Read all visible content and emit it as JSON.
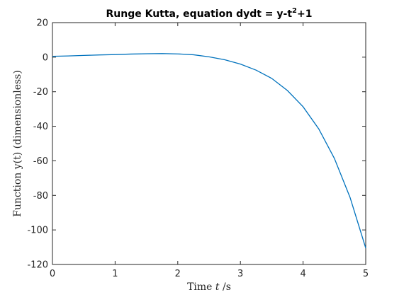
{
  "chart_data": {
    "type": "line",
    "title_main": "Runge Kutta, equation dydt = y-t",
    "title_sup": "2",
    "title_tail": "+1",
    "xlabel_prefix": "Time ",
    "xlabel_var": "t",
    "xlabel_suffix": " /s",
    "ylabel": "Function y(t) (dimensionless)",
    "xlim": [
      0,
      5
    ],
    "ylim": [
      -120,
      20
    ],
    "xticks": [
      0,
      1,
      2,
      3,
      4,
      5
    ],
    "xtick_labels": [
      "0",
      "1",
      "2",
      "3",
      "4",
      "5"
    ],
    "yticks": [
      20,
      0,
      -20,
      -40,
      -60,
      -80,
      -100,
      -120
    ],
    "ytick_labels": [
      "20",
      "0",
      "-20",
      "-40",
      "-60",
      "-80",
      "-100",
      "-120"
    ],
    "grid": false,
    "line_color": "#0072bd",
    "series": [
      {
        "x": [
          0,
          0.25,
          0.5,
          0.75,
          1.0,
          1.25,
          1.5,
          1.75,
          2.0,
          2.25,
          2.5,
          2.75,
          3.0,
          3.25,
          3.5,
          3.75,
          4.0,
          4.25,
          4.5,
          4.75,
          5.0
        ],
        "values": [
          0.5,
          0.7,
          1.0,
          1.3,
          1.5,
          1.8,
          2.0,
          2.1,
          1.9,
          1.4,
          0.2,
          -1.5,
          -4.0,
          -7.5,
          -12.3,
          -19.3,
          -28.7,
          -41.5,
          -58.6,
          -81.2,
          -110.5
        ]
      }
    ]
  }
}
